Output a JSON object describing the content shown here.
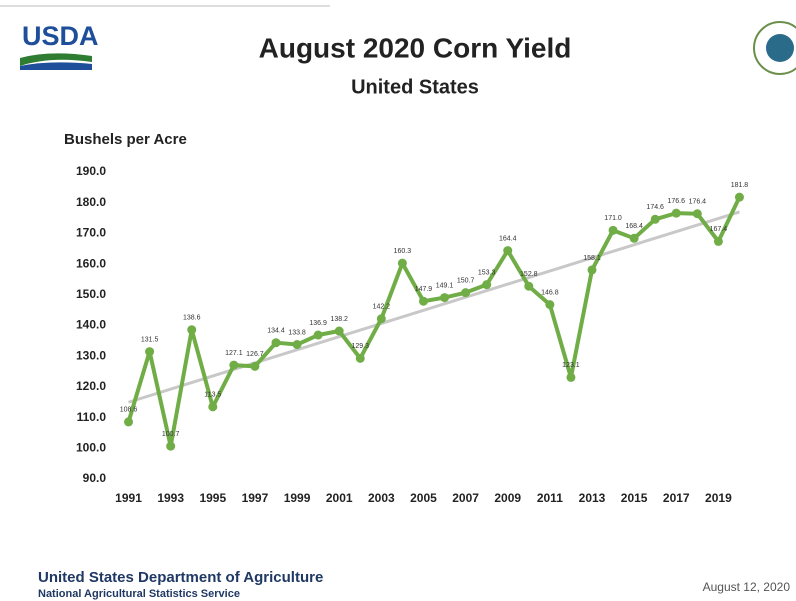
{
  "header": {
    "logo_text": "USDA"
  },
  "chart_data": {
    "type": "line",
    "title": "August 2020 Corn Yield",
    "subtitle": "United States",
    "y_label": "Bushels per Acre",
    "x": [
      1991,
      1992,
      1993,
      1994,
      1995,
      1996,
      1997,
      1998,
      1999,
      2000,
      2001,
      2002,
      2003,
      2004,
      2005,
      2006,
      2007,
      2008,
      2009,
      2010,
      2011,
      2012,
      2013,
      2014,
      2015,
      2016,
      2017,
      2018,
      2019,
      2020
    ],
    "series": [
      {
        "color": "#70ad47",
        "values": [
          108.6,
          131.5,
          100.7,
          138.6,
          113.5,
          127.1,
          126.7,
          134.4,
          133.8,
          136.9,
          138.2,
          129.3,
          142.2,
          160.3,
          147.9,
          149.1,
          150.7,
          153.3,
          164.4,
          152.8,
          146.8,
          123.1,
          158.1,
          171.0,
          168.4,
          174.6,
          176.6,
          176.4,
          167.4,
          181.8
        ],
        "value_labels": [
          "108.6",
          "131.5",
          "100.7",
          "138.6",
          "113.5",
          "127.1",
          "126.7",
          "134.4",
          "133.8",
          "136.9",
          "138.2",
          "129.3",
          "142.2",
          "160.3",
          "147.9",
          "149.1",
          "150.7",
          "153.3",
          "164.4",
          "152.8",
          "146.8",
          "123.1",
          "158.1",
          "171.0",
          "168.4",
          "174.6",
          "176.6",
          "176.4",
          "167.4",
          "181.8"
        ]
      }
    ],
    "trendline": {
      "color": "#c8c8c8",
      "x": [
        1991,
        2020
      ],
      "values": [
        115,
        177
      ]
    },
    "xlim": [
      1990.5,
      2020.5
    ],
    "xticks": [
      1991,
      1993,
      1995,
      1997,
      1999,
      2001,
      2003,
      2005,
      2007,
      2009,
      2011,
      2013,
      2015,
      2017,
      2019
    ],
    "ylim": [
      90,
      190
    ],
    "yticks": [
      {
        "value": 90,
        "label": "90.0"
      },
      {
        "value": 100,
        "label": "100.0"
      },
      {
        "value": 110,
        "label": "110.0"
      },
      {
        "value": 120,
        "label": "120.0"
      },
      {
        "value": 130,
        "label": "130.0"
      },
      {
        "value": 140,
        "label": "140.0"
      },
      {
        "value": 150,
        "label": "150.0"
      },
      {
        "value": 160,
        "label": "160.0"
      },
      {
        "value": 170,
        "label": "170.0"
      },
      {
        "value": 180,
        "label": "180.0"
      },
      {
        "value": 190,
        "label": "190.0"
      }
    ],
    "grid": false
  },
  "footer": {
    "org": "United States Department of Agriculture",
    "agency": "National Agricultural Statistics Service",
    "date": "August 12, 2020"
  }
}
